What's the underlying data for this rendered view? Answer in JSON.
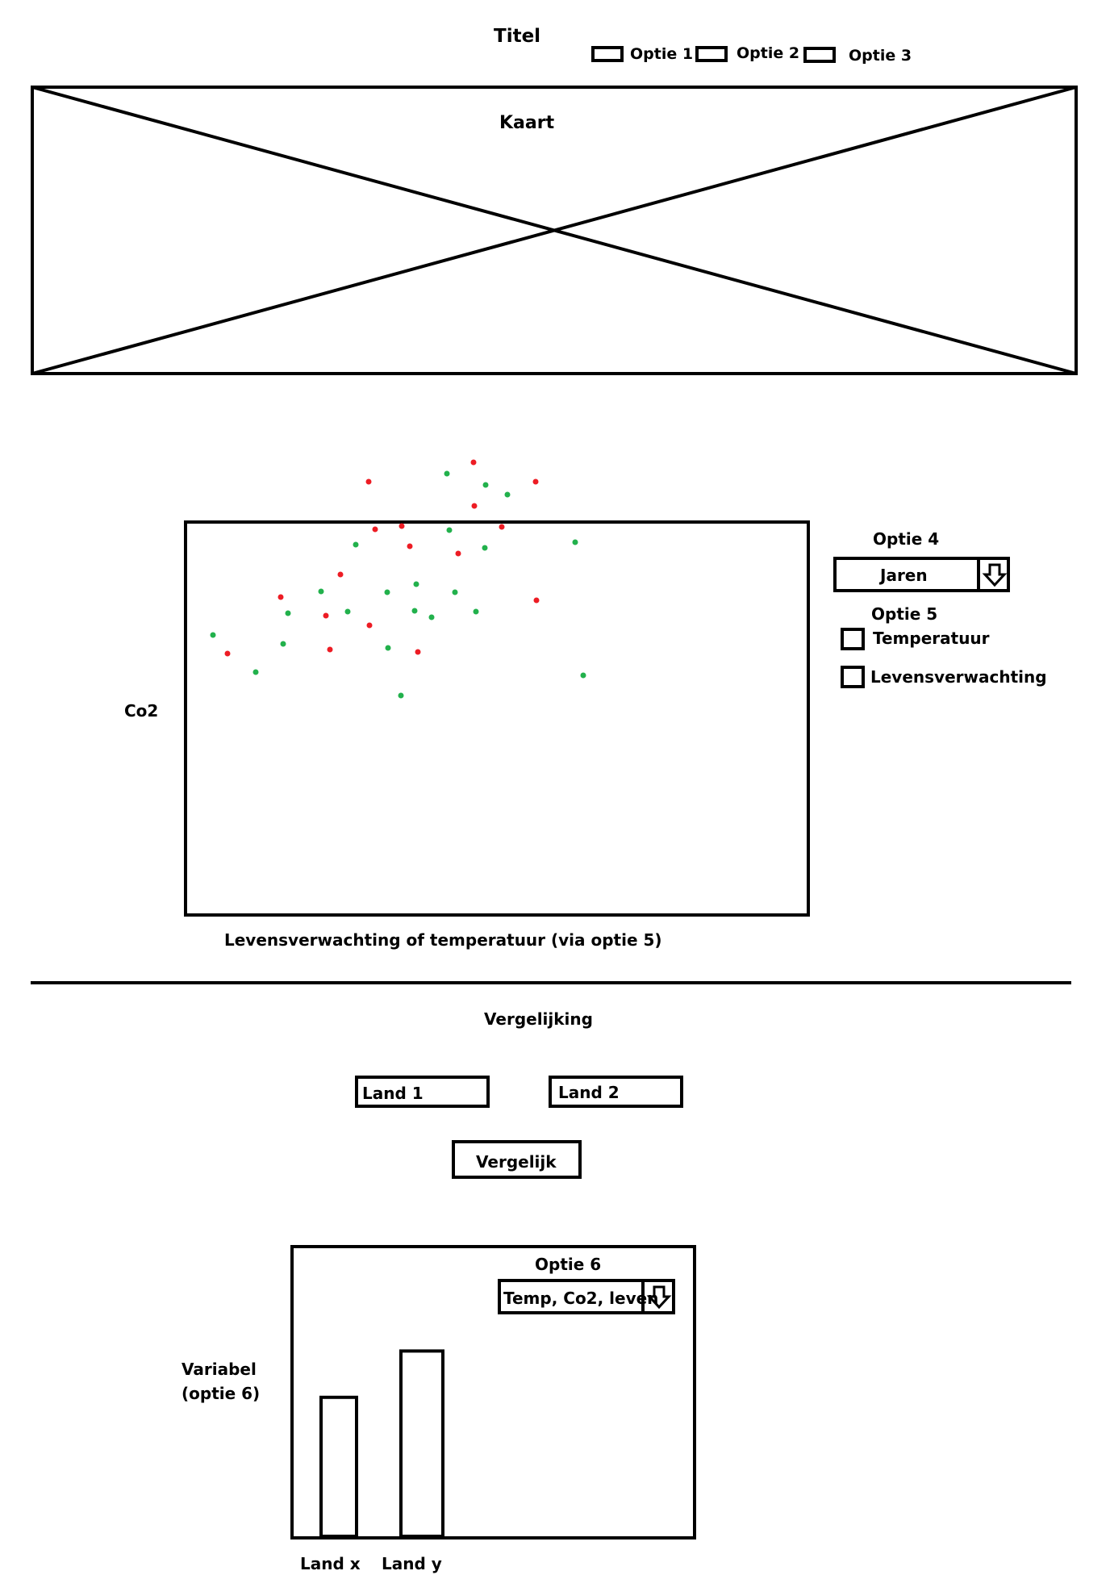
{
  "header": {
    "title": "Titel",
    "options": [
      "Optie 1",
      "Optie 2",
      "Optie 3"
    ]
  },
  "map": {
    "label": "Kaart"
  },
  "scatter": {
    "ylabel": "Co2",
    "xlabel": "Levensverwachting of temperatuur (via optie 5)"
  },
  "controls": {
    "option4_label": "Optie 4",
    "years_select": "Jaren",
    "option5_label": "Optie 5",
    "checkboxes": [
      "Temperatuur",
      "Levensverwachting"
    ]
  },
  "comparison": {
    "heading": "Vergelijking",
    "country1": "Land 1",
    "country2": "Land 2",
    "compare_button": "Vergelijk"
  },
  "bar_panel": {
    "option6_label": "Optie 6",
    "variable_select": "Temp, Co2, leven",
    "ylabel_line1": "Variabel",
    "ylabel_line2": "(optie 6)"
  },
  "colors": {
    "series_green": "#22b14c",
    "series_red": "#ed1c24"
  },
  "chart_data": [
    {
      "type": "scatter",
      "title": "",
      "xlabel": "Levensverwachting of temperatuur (via optie 5)",
      "ylabel": "Co2",
      "grid": false,
      "series": [
        {
          "color": "green",
          "points": [
            [
              554,
              587
            ],
            [
              602,
              601
            ],
            [
              629,
              613
            ],
            [
              713,
              672
            ],
            [
              557,
              657
            ],
            [
              601,
              679
            ],
            [
              441,
              675
            ],
            [
              516,
              724
            ],
            [
              398,
              733
            ],
            [
              480,
              734
            ],
            [
              564,
              734
            ],
            [
              357,
              760
            ],
            [
              431,
              758
            ],
            [
              514,
              757
            ],
            [
              535,
              765
            ],
            [
              590,
              758
            ],
            [
              264,
              787
            ],
            [
              351,
              798
            ],
            [
              481,
              803
            ],
            [
              317,
              833
            ],
            [
              723,
              837
            ],
            [
              497,
              862
            ]
          ]
        },
        {
          "color": "red",
          "points": [
            [
              587,
              573
            ],
            [
              457,
              597
            ],
            [
              664,
              597
            ],
            [
              588,
              627
            ],
            [
              465,
              656
            ],
            [
              498,
              652
            ],
            [
              622,
              653
            ],
            [
              508,
              677
            ],
            [
              568,
              686
            ],
            [
              422,
              712
            ],
            [
              348,
              740
            ],
            [
              665,
              744
            ],
            [
              404,
              763
            ],
            [
              458,
              775
            ],
            [
              282,
              810
            ],
            [
              409,
              805
            ],
            [
              518,
              808
            ]
          ]
        }
      ]
    },
    {
      "type": "bar",
      "categories": [
        "Land x",
        "Land y"
      ],
      "values": [
        0.6,
        0.8
      ],
      "ylabel": "Variabel (optie 6)",
      "ylim": [
        0,
        1
      ]
    }
  ]
}
